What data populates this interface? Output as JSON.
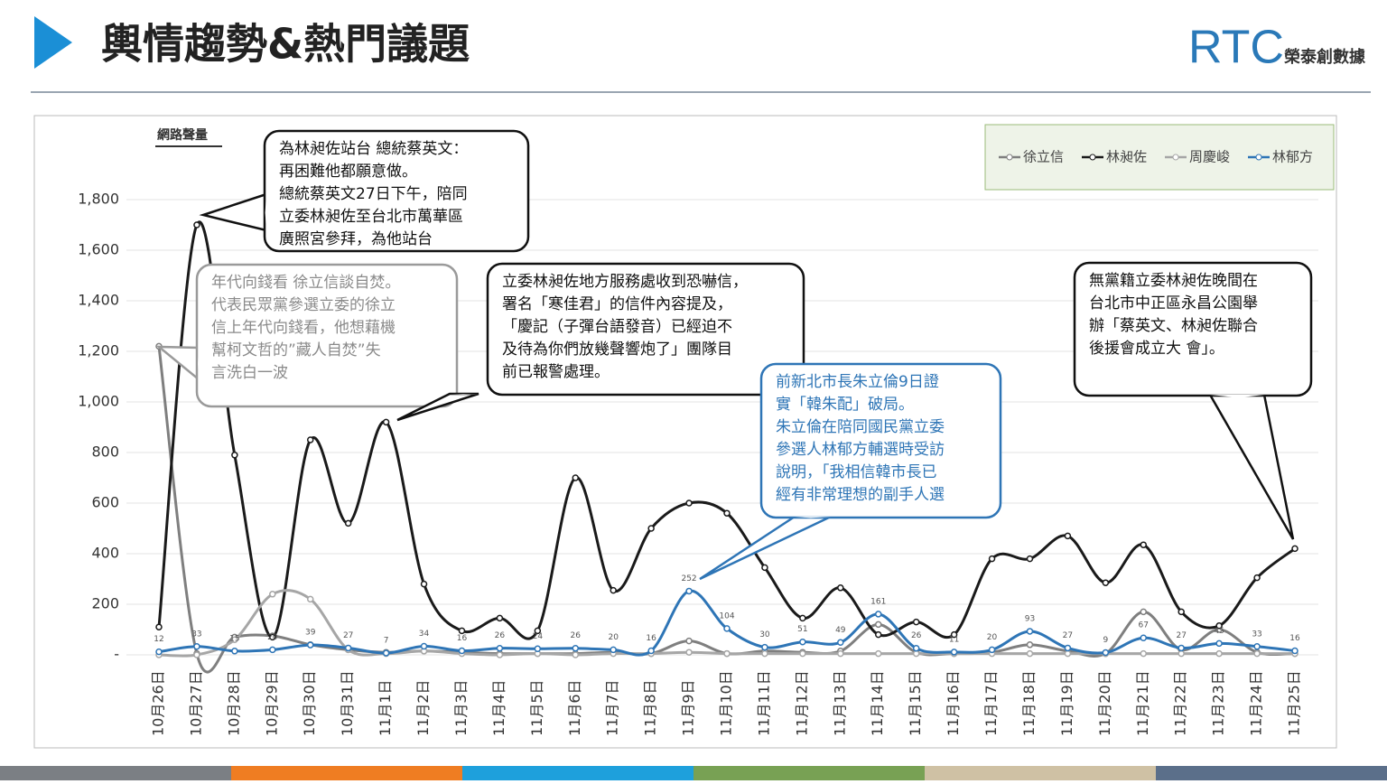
{
  "header": {
    "title": "輿情趨勢&熱門議題",
    "logo": "RTC",
    "brand": "榮泰創數據"
  },
  "chart_data": {
    "type": "line",
    "y_label": "網路聲量",
    "categories": [
      "10月26日",
      "10月27日",
      "10月28日",
      "10月29日",
      "10月30日",
      "10月31日",
      "11月1日",
      "11月2日",
      "11月3日",
      "11月4日",
      "11月5日",
      "11月6日",
      "11月7日",
      "11月8日",
      "11月9日",
      "11月10日",
      "11月11日",
      "11月12日",
      "11月13日",
      "11月14日",
      "11月15日",
      "11月16日",
      "11月17日",
      "11月18日",
      "11月19日",
      "11月20日",
      "11月21日",
      "11月22日",
      "11月23日",
      "11月24日",
      "11月25日"
    ],
    "series": [
      {
        "name": "徐立信",
        "color": "#7f7f7f",
        "values": [
          1220,
          5,
          70,
          75,
          40,
          20,
          10,
          15,
          10,
          5,
          5,
          5,
          10,
          5,
          55,
          5,
          15,
          10,
          15,
          120,
          10,
          5,
          10,
          40,
          15,
          5,
          170,
          20,
          100,
          10,
          5
        ]
      },
      {
        "name": "林昶佐",
        "color": "#1a1a1a",
        "values": [
          110,
          1700,
          790,
          70,
          850,
          520,
          920,
          280,
          95,
          145,
          95,
          700,
          255,
          500,
          600,
          560,
          345,
          145,
          265,
          80,
          130,
          80,
          380,
          380,
          470,
          285,
          435,
          170,
          115,
          305,
          420
        ]
      },
      {
        "name": "周慶峻",
        "color": "#a6a6a6",
        "values": [
          0,
          0,
          60,
          240,
          220,
          20,
          5,
          15,
          5,
          0,
          5,
          0,
          5,
          5,
          10,
          5,
          5,
          5,
          5,
          5,
          5,
          5,
          5,
          5,
          5,
          5,
          5,
          5,
          5,
          5,
          5
        ]
      },
      {
        "name": "林郁方",
        "color": "#2e75b6",
        "values": [
          12,
          33,
          15,
          20,
          39,
          27,
          7,
          34,
          16,
          26,
          24,
          26,
          20,
          16,
          252,
          104,
          30,
          51,
          49,
          161,
          26,
          11,
          20,
          93,
          27,
          9,
          67,
          27,
          45,
          33,
          16
        ],
        "data_labels": true
      }
    ],
    "ylim": [
      0,
      2000
    ],
    "yticks": [
      {
        "value": 0,
        "label": "-"
      },
      200,
      400,
      600,
      800,
      {
        "value": 1000,
        "label": "1,000"
      },
      {
        "value": 1200,
        "label": "1,200"
      },
      {
        "value": 1400,
        "label": "1,400"
      },
      {
        "value": 1600,
        "label": "1,600"
      },
      {
        "value": 1800,
        "label": "1,800"
      }
    ],
    "grid": true,
    "legend": "top-right",
    "annotations": [
      {
        "lines": [
          "為林昶佐站台 總統蔡英文：",
          "再困難他都願意做。",
          "總統蔡英文27日下午，陪同",
          "立委林昶佐至台北市萬華區",
          "廣照宮參拜，為他站台"
        ]
      },
      {
        "lines": [
          "年代向錢看 徐立信談自焚。",
          "代表民眾黨參選立委的徐立",
          "信上年代向錢看，他想藉機",
          "幫柯文哲的”藏人自焚”失",
          "言洗白一波"
        ]
      },
      {
        "lines": [
          "立委林昶佐地方服務處收到恐嚇信，",
          "署名「寒佳君」的信件內容提及，",
          "「慶記（子彈台語發音）已經迫不",
          "及待為你們放幾聲響炮了」團隊目",
          "前已報警處理。"
        ]
      },
      {
        "lines": [
          "前新北市長朱立倫9日證",
          "實「韓朱配」破局。",
          "朱立倫在陪同國民黨立委",
          "參選人林郁方輔選時受訪",
          "說明，「我相信韓市長已",
          "經有非常理想的副手人選"
        ]
      },
      {
        "lines": [
          "無黨籍立委林昶佐晚間在",
          "台北市中正區永昌公園舉",
          "辦「蔡英文、林昶佐聯合",
          "後援會成立大 會」。"
        ]
      }
    ]
  }
}
